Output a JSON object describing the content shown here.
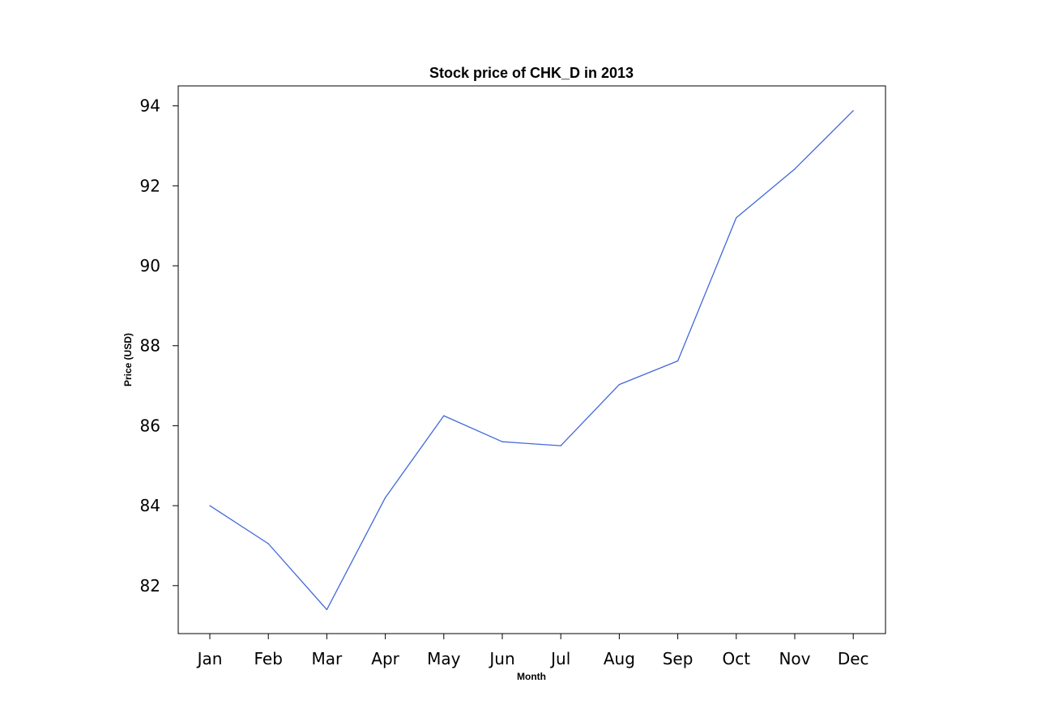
{
  "chart_data": {
    "type": "line",
    "title": "Stock price of CHK_D in 2013",
    "xlabel": "Month",
    "ylabel": "Price (USD)",
    "categories": [
      "Jan",
      "Feb",
      "Mar",
      "Apr",
      "May",
      "Jun",
      "Jul",
      "Aug",
      "Sep",
      "Oct",
      "Nov",
      "Dec"
    ],
    "yticks": [
      "82",
      "84",
      "86",
      "88",
      "90",
      "92",
      "94"
    ],
    "ylim": [
      80.8,
      94.5
    ],
    "grid": false,
    "series": [
      {
        "values": [
          84.0,
          83.05,
          81.4,
          84.2,
          86.25,
          85.6,
          85.5,
          87.03,
          87.62,
          91.2,
          92.42,
          93.88
        ],
        "color": "#4169d8"
      }
    ]
  }
}
